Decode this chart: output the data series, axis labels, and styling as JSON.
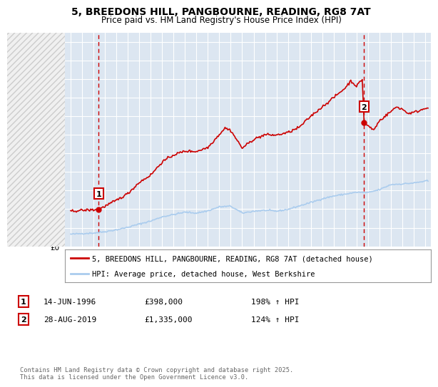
{
  "title": "5, BREEDONS HILL, PANGBOURNE, READING, RG8 7AT",
  "subtitle": "Price paid vs. HM Land Registry's House Price Index (HPI)",
  "bg_color": "#ffffff",
  "plot_bg_color": "#dce6f1",
  "hatch_bg_color": "#e8e8e8",
  "grid_color": "#ffffff",
  "red_color": "#cc0000",
  "blue_color": "#aaccee",
  "sale1_date": 1996.45,
  "sale1_price": 398000,
  "sale1_label": "1",
  "sale2_date": 2019.66,
  "sale2_price": 1335000,
  "sale2_label": "2",
  "xmin": 1993.5,
  "xmax": 2025.5,
  "ymin": 0,
  "ymax": 2300000,
  "yticks": [
    0,
    200000,
    400000,
    600000,
    800000,
    1000000,
    1200000,
    1400000,
    1600000,
    1800000,
    2000000,
    2200000
  ],
  "xticks": [
    1994,
    1995,
    1996,
    1997,
    1998,
    1999,
    2000,
    2001,
    2002,
    2003,
    2004,
    2005,
    2006,
    2007,
    2008,
    2009,
    2010,
    2011,
    2012,
    2013,
    2014,
    2015,
    2016,
    2017,
    2018,
    2019,
    2020,
    2021,
    2022,
    2023,
    2024,
    2025
  ],
  "legend_line1": "5, BREEDONS HILL, PANGBOURNE, READING, RG8 7AT (detached house)",
  "legend_line2": "HPI: Average price, detached house, West Berkshire",
  "annot1_date": "14-JUN-1996",
  "annot1_price": "£398,000",
  "annot1_hpi": "198% ↑ HPI",
  "annot2_date": "28-AUG-2019",
  "annot2_price": "£1,335,000",
  "annot2_hpi": "124% ↑ HPI",
  "footer": "Contains HM Land Registry data © Crown copyright and database right 2025.\nThis data is licensed under the Open Government Licence v3.0."
}
